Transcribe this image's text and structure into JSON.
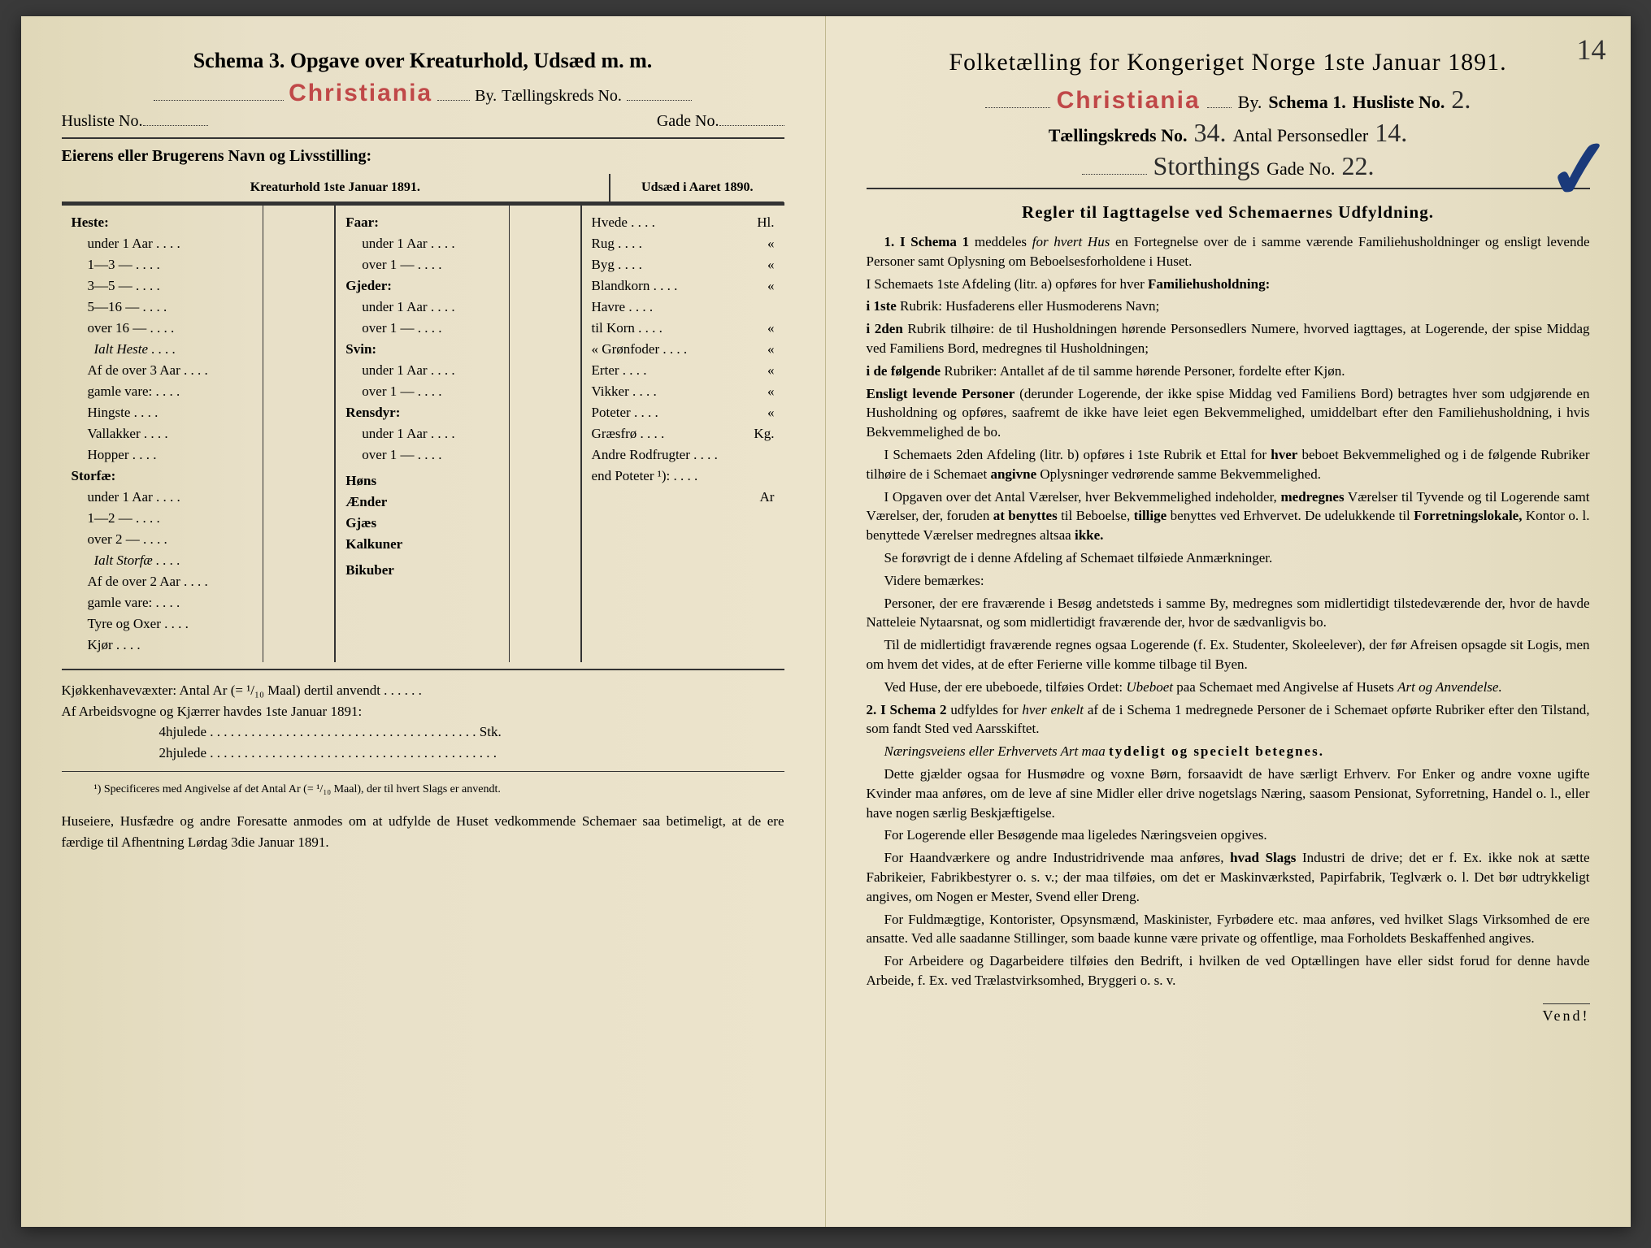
{
  "left": {
    "schema_title": "Schema 3.  Opgave over Kreaturhold, Udsæd m. m.",
    "city_stamp": "Christiania",
    "by_label": "By.",
    "kreds_label": "Tællingskreds No.",
    "husliste_label": "Husliste No.",
    "gade_label": "Gade No.",
    "owner_label": "Eierens eller Brugerens Navn og Livsstilling:",
    "col_head_left": "Kreaturhold 1ste Januar 1891.",
    "col_head_right": "Udsæd i Aaret 1890.",
    "animals_col1": [
      {
        "t": "Heste:",
        "bold": true
      },
      {
        "t": "under 1 Aar",
        "indent": true
      },
      {
        "t": "1—3  —",
        "indent": true
      },
      {
        "t": "3—5  —",
        "indent": true
      },
      {
        "t": "5—16  —",
        "indent": true
      },
      {
        "t": "over 16 —",
        "indent": true
      },
      {
        "t": "Ialt Heste",
        "italic": true
      },
      {
        "t": "Af de over 3 Aar",
        "indent": true
      },
      {
        "t": "gamle vare:",
        "indent": true
      },
      {
        "t": "Hingste",
        "indent": true
      },
      {
        "t": "Vallakker",
        "indent": true
      },
      {
        "t": "Hopper",
        "indent": true
      },
      {
        "t": "Storfæ:",
        "bold": true
      },
      {
        "t": "under 1 Aar",
        "indent": true
      },
      {
        "t": "1—2  —",
        "indent": true
      },
      {
        "t": "over 2  —",
        "indent": true
      },
      {
        "t": "Ialt Storfæ",
        "italic": true
      },
      {
        "t": "Af de over 2 Aar",
        "indent": true
      },
      {
        "t": "gamle vare:",
        "indent": true
      },
      {
        "t": "Tyre og Oxer",
        "indent": true
      },
      {
        "t": "Kjør",
        "indent": true
      }
    ],
    "animals_col3": [
      {
        "t": "Faar:",
        "bold": true
      },
      {
        "t": "under 1 Aar",
        "indent": true
      },
      {
        "t": "over 1  —",
        "indent": true
      },
      {
        "t": "Gjeder:",
        "bold": true
      },
      {
        "t": "under 1 Aar",
        "indent": true
      },
      {
        "t": "over 1  —",
        "indent": true
      },
      {
        "t": "Svin:",
        "bold": true
      },
      {
        "t": "under 1 Aar",
        "indent": true
      },
      {
        "t": "over 1  —",
        "indent": true
      },
      {
        "t": "Rensdyr:",
        "bold": true
      },
      {
        "t": "under 1 Aar",
        "indent": true
      },
      {
        "t": "over 1  —",
        "indent": true
      },
      {
        "t": " "
      },
      {
        "t": "Høns",
        "bold": true
      },
      {
        "t": "Ænder",
        "bold": true
      },
      {
        "t": "Gjæs",
        "bold": true
      },
      {
        "t": "Kalkuner",
        "bold": true
      },
      {
        "t": " "
      },
      {
        "t": "Bikuber",
        "bold": true
      }
    ],
    "crops": [
      {
        "t": "Hvede",
        "u": "Hl."
      },
      {
        "t": "Rug",
        "u": "«"
      },
      {
        "t": "Byg",
        "u": "«"
      },
      {
        "t": "Blandkorn",
        "u": "«"
      },
      {
        "t": "Havre",
        "u": ""
      },
      {
        "t": "  til Korn",
        "u": "«"
      },
      {
        "t": "  « Grønfoder",
        "u": "«"
      },
      {
        "t": "Erter",
        "u": "«"
      },
      {
        "t": "Vikker",
        "u": "«"
      },
      {
        "t": "Poteter",
        "u": "«"
      },
      {
        "t": "Græsfrø",
        "u": "Kg."
      },
      {
        "t": "Andre Rodfrugter",
        "u": ""
      },
      {
        "t": "end Poteter ¹):",
        "u": ""
      },
      {
        "t": "",
        "u": "Ar"
      }
    ],
    "footer1": "Kjøkkenhavevæxter:  Antal Ar (= ¹/₁₀ Maal) dertil anvendt . . . . . .",
    "footer2": "Af Arbeidsvogne og Kjærrer havdes 1ste Januar 1891:",
    "footer3": "4hjulede . . . . . . . . . . . . . . . . . . . . . . . . . . . . . . . . . . . . . . . Stk.",
    "footer4": "2hjulede . . . . . . . . . . . . . . . . . . . . . . . . . . . . . . . . . . . . . . . . . .",
    "footnote": "¹) Specificeres med Angivelse af det Antal Ar (= ¹/₁₀ Maal), der til hvert Slags er anvendt.",
    "closing": "Huseiere, Husfædre og andre Foresatte anmodes om at udfylde de Huset vedkommende Schemaer saa betimeligt, at de ere færdige til Afhentning Lørdag 3die Januar 1891."
  },
  "right": {
    "corner_num": "14",
    "title": "Folketælling for Kongeriget Norge 1ste Januar 1891.",
    "city_stamp": "Christiania",
    "by_label": "By.",
    "schema_label": "Schema 1.",
    "husliste_label": "Husliste No.",
    "husliste_val": "2.",
    "kreds_label": "Tællingskreds No.",
    "kreds_val": "34.",
    "antal_label": "Antal Personsedler",
    "antal_val": "14.",
    "street_val": "Storthings",
    "gade_label": "Gade No.",
    "gade_val": "22.",
    "regler_title": "Regler til Iagttagelse ved Schemaernes Udfyldning.",
    "rules": [
      {
        "html": "<span class='rule-num'>1. I Schema 1</span> meddeles <span class='italic'>for hvert Hus</span> en Fortegnelse over de i samme værende Familiehusholdninger og ensligt levende Personer samt Oplysning om Beboelsesforholdene i Huset."
      },
      {
        "html": "I Schemaets 1ste Afdeling (litr. a) opføres for hver <span class='bold'>Familiehusholdning:</span>",
        "no_indent": true
      },
      {
        "html": "<span class='bold'>i 1ste</span> Rubrik: Husfaderens eller Husmoderens Navn;",
        "no_indent": true
      },
      {
        "html": "<span class='bold'>i 2den</span> Rubrik tilhøire: de til Husholdningen hørende Personsedlers Numere, hvorved iagttages, at Logerende, der spise Middag ved Familiens Bord, medregnes til Husholdningen;",
        "no_indent": true
      },
      {
        "html": "<span class='bold'>i de følgende</span> Rubriker: Antallet af de til samme hørende Personer, fordelte efter Kjøn.",
        "no_indent": true
      },
      {
        "html": "<span class='bold'>Ensligt levende Personer</span> (derunder Logerende, der ikke spise Middag ved Familiens Bord) betragtes hver som udgjørende en Husholdning og opføres, saafremt de ikke have leiet egen Bekvemmelighed, umiddelbart efter den Familiehusholdning, i hvis Bekvemmelighed de bo.",
        "no_indent": true
      },
      {
        "html": "I Schemaets 2den Afdeling (litr. b) opføres i 1ste Rubrik et Ettal for <span class='bold'>hver</span> beboet Bekvemmelighed og i de følgende Rubriker tilhøire de i Schemaet <span class='bold'>angivne</span> Oplysninger vedrørende samme Bekvemmelighed."
      },
      {
        "html": "I Opgaven over det Antal Værelser, hver Bekvemmelighed indeholder, <span class='bold'>medregnes</span> Værelser til Tyvende og til Logerende samt Værelser, der, foruden <span class='bold'>at benyttes</span> til Beboelse, <span class='bold'>tillige</span> benyttes ved Erhvervet. De udelukkende til <span class='bold'>Forretningslokale,</span> Kontor o. l. benyttede Værelser medregnes altsaa <span class='bold'>ikke.</span>"
      },
      {
        "html": "Se forøvrigt de i denne Afdeling af Schemaet tilføiede Anmærkninger."
      },
      {
        "html": "Videre bemærkes:"
      },
      {
        "html": "Personer, der ere fraværende i Besøg andetsteds i samme By, medregnes som midlertidigt tilstedeværende der, hvor de havde Natteleie Nytaarsnat, og som midlertidigt fraværende der, hvor de sædvanligvis bo."
      },
      {
        "html": "Til de midlertidigt fraværende regnes ogsaa Logerende (f. Ex. Studenter, Skoleelever), der før Afreisen opsagde sit Logis, men om hvem det vides, at de efter Ferierne ville komme tilbage til Byen."
      },
      {
        "html": "Ved Huse, der ere ubeboede, tilføies Ordet: <span class='italic'>Ubeboet</span> paa Schemaet med Angivelse af Husets <span class='italic'>Art og Anvendelse.</span>"
      },
      {
        "html": "<span class='rule-num'>2. I Schema 2</span> udfyldes for <span class='italic'>hver enkelt</span> af de i Schema 1 medregnede Personer de i Schemaet opførte Rubriker efter den Tilstand, som fandt Sted ved Aarsskiftet.",
        "no_indent": true
      },
      {
        "html": "<span class='italic'>Næringsveiens eller Erhvervets Art maa</span> <span class='bold spaced'>tydeligt og specielt betegnes.</span>"
      },
      {
        "html": "Dette gjælder ogsaa for Husmødre og voxne Børn, forsaavidt de have særligt Erhverv. For Enker og andre voxne ugifte Kvinder maa anføres, om de leve af sine Midler eller drive nogetslags Næring, saasom Pensionat, Syforretning, Handel o. l., eller have nogen særlig Beskjæftigelse."
      },
      {
        "html": "For Logerende eller Besøgende maa ligeledes Næringsveien opgives."
      },
      {
        "html": "For Haandværkere og andre Industridrivende maa anføres, <span class='bold'>hvad Slags</span> Industri de drive; det er f. Ex. ikke nok at sætte Fabrikeier, Fabrikbestyrer o. s. v.; der maa tilføies, om det er Maskinværksted, Papirfabrik, Teglværk o. l. Det bør udtrykkeligt angives, om Nogen er Mester, Svend eller Dreng."
      },
      {
        "html": "For Fuldmægtige, Kontorister, Opsynsmænd, Maskinister, Fyrbødere etc. maa anføres, ved hvilket Slags Virksomhed de ere ansatte. Ved alle saadanne Stillinger, som baade kunne være private og offentlige, maa Forholdets Beskaffenhed angives."
      },
      {
        "html": "For Arbeidere og Dagarbeidere tilføies den Bedrift, i hvilken de ved Optællingen have eller sidst forud for denne havde Arbeide, f. Ex. ved Trælastvirksomhed, Bryggeri o. s. v."
      }
    ],
    "vend": "Vend!"
  }
}
